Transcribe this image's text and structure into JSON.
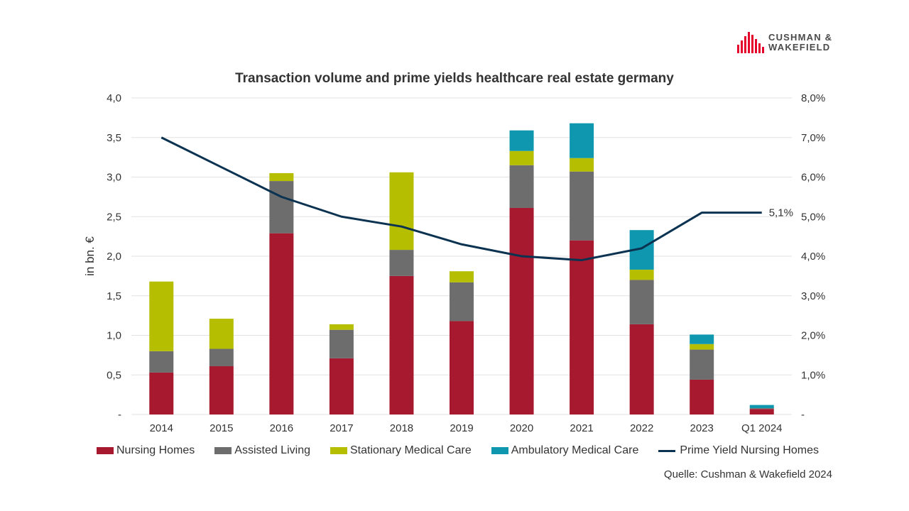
{
  "logo": {
    "line1": "CUSHMAN &",
    "line2": "WAKEFIELD",
    "color": "#e4002b"
  },
  "source_note": "Quelle:  Cushman  & Wakefield 2024",
  "chart_data": {
    "type": "bar",
    "stacked": true,
    "title": "Transaction volume and prime yields  healthcare real estate germany",
    "ylabel": "in bn. €",
    "y2label": "",
    "categories": [
      "2014",
      "2015",
      "2016",
      "2017",
      "2018",
      "2019",
      "2020",
      "2021",
      "2022",
      "2023",
      "Q1 2024"
    ],
    "ylim": [
      0,
      4.0
    ],
    "y_ticks": [
      "-",
      "0,5",
      "1,0",
      "1,5",
      "2,0",
      "2,5",
      "3,0",
      "3,5",
      "4,0"
    ],
    "y2lim": [
      0,
      8.0
    ],
    "y2_ticks": [
      "-",
      "1,0%",
      "2,0%",
      "3,0%",
      "4,0%",
      "5,0%",
      "6,0%",
      "7,0%",
      "8,0%"
    ],
    "grid": true,
    "legend_position": "bottom",
    "series": [
      {
        "name": "Nursing Homes",
        "color": "#a6192e",
        "values": [
          0.53,
          0.61,
          2.29,
          0.71,
          1.75,
          1.18,
          2.61,
          2.2,
          1.14,
          0.44,
          0.07
        ]
      },
      {
        "name": "Assisted Living",
        "color": "#6d6d6d",
        "values": [
          0.27,
          0.22,
          0.66,
          0.36,
          0.33,
          0.49,
          0.54,
          0.87,
          0.56,
          0.38,
          0.01
        ]
      },
      {
        "name": "Stationary Medical Care",
        "color": "#b5be00",
        "values": [
          0.88,
          0.38,
          0.1,
          0.07,
          0.98,
          0.14,
          0.18,
          0.17,
          0.13,
          0.07,
          0.0
        ]
      },
      {
        "name": "Ambulatory Medical Care",
        "color": "#0f97b0",
        "values": [
          0.0,
          0.0,
          0.0,
          0.0,
          0.0,
          0.0,
          0.26,
          0.44,
          0.5,
          0.12,
          0.04
        ]
      }
    ],
    "line_series": {
      "name": "Prime Yield Nursing Homes",
      "color": "#0b3351",
      "axis": "right",
      "values": [
        7.0,
        6.25,
        5.5,
        5.0,
        4.75,
        4.3,
        4.0,
        3.9,
        4.2,
        5.1,
        5.1
      ],
      "end_label": "5,1%"
    }
  }
}
